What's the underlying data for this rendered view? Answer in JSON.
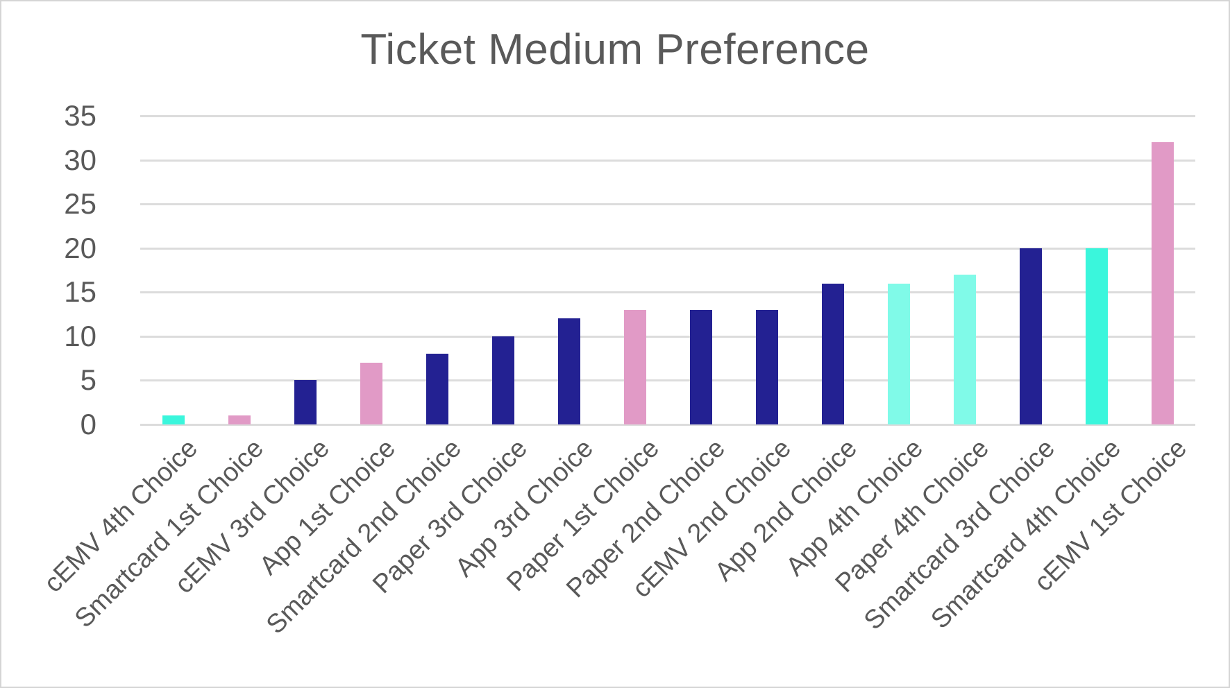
{
  "title": "Ticket Medium Preference",
  "chart_data": {
    "type": "bar",
    "title": "Ticket Medium Preference",
    "xlabel": "",
    "ylabel": "",
    "ylim": [
      0,
      35
    ],
    "y_ticks": [
      35,
      30,
      25,
      20,
      15,
      10,
      5,
      0
    ],
    "grid": "horizontal",
    "legend": "none",
    "categories": [
      "cEMV 4th Choice",
      "Smartcard 1st Choice",
      "cEMV 3rd Choice",
      "App 1st Choice",
      "Smartcard 2nd Choice",
      "Paper 3rd Choice",
      "App 3rd Choice",
      "Paper 1st Choice",
      "Paper 2nd Choice",
      "cEMV 2nd Choice",
      "App 2nd Choice",
      "App 4th Choice",
      "Paper 4th Choice",
      "Smartcard 3rd Choice",
      "Smartcard 4th Choice",
      "cEMV 1st Choice"
    ],
    "values": [
      1,
      1,
      5,
      7,
      8,
      10,
      12,
      13,
      13,
      13,
      16,
      16,
      17,
      20,
      20,
      32
    ],
    "bar_colors": [
      "#3af6dc",
      "#e19ac6",
      "#232192",
      "#e19ac6",
      "#232192",
      "#232192",
      "#232192",
      "#e19ac6",
      "#232192",
      "#232192",
      "#232192",
      "#80fae8",
      "#80fae8",
      "#232192",
      "#3af6dc",
      "#e19ac6"
    ]
  },
  "colors": {
    "title_text": "#595959",
    "axis_text": "#595959",
    "gridline": "#dcdcdc",
    "navy": "#232192",
    "pink": "#e19ac6",
    "turquoise": "#3af6dc",
    "light_turquoise": "#80fae8",
    "frame_border": "#d5d5d5",
    "background": "#ffffff"
  }
}
